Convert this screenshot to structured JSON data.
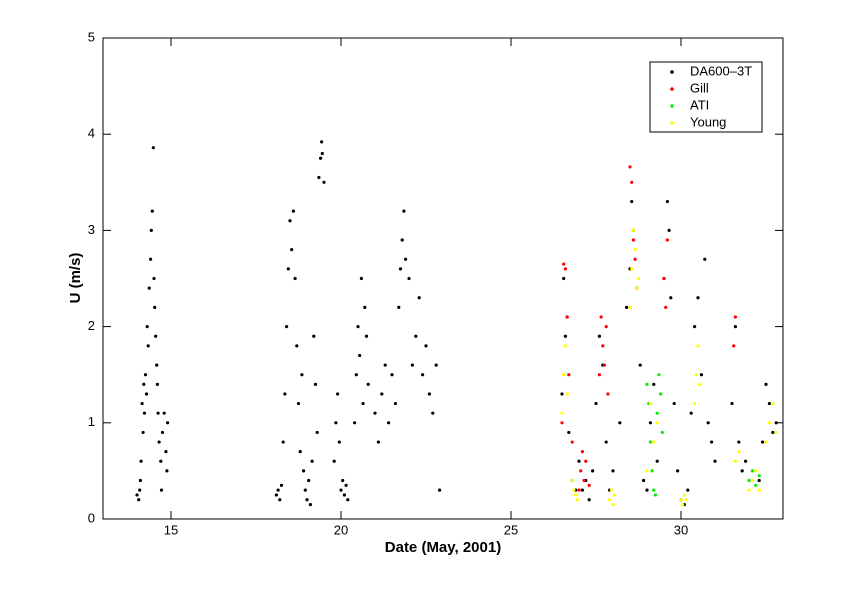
{
  "chart_data": {
    "type": "scatter",
    "xlabel": "Date  (May,  2001)",
    "ylabel": "U  (m/s)",
    "xlim": [
      13,
      33
    ],
    "ylim": [
      0,
      5
    ],
    "xticks": [
      15,
      20,
      25,
      30
    ],
    "yticks": [
      0,
      1,
      2,
      3,
      4,
      5
    ],
    "legend": "top-right",
    "series": [
      {
        "name": "DA600–3T",
        "color": "#000000",
        "x": [
          14.0,
          14.05,
          14.08,
          14.1,
          14.12,
          14.15,
          14.18,
          14.2,
          14.22,
          14.25,
          14.28,
          14.3,
          14.33,
          14.36,
          14.4,
          14.42,
          14.45,
          14.48,
          14.5,
          14.52,
          14.55,
          14.58,
          14.6,
          14.62,
          14.65,
          14.7,
          14.72,
          14.75,
          14.8,
          14.85,
          14.88,
          14.9,
          18.1,
          18.15,
          18.2,
          18.25,
          18.3,
          18.35,
          18.4,
          18.45,
          18.5,
          18.55,
          18.6,
          18.65,
          18.7,
          18.75,
          18.8,
          18.85,
          18.9,
          18.95,
          19.0,
          19.05,
          19.1,
          19.15,
          19.2,
          19.25,
          19.3,
          19.35,
          19.4,
          19.43,
          19.45,
          19.5,
          19.8,
          19.85,
          19.9,
          19.95,
          20.0,
          20.05,
          20.1,
          20.15,
          20.2,
          20.4,
          20.45,
          20.5,
          20.55,
          20.6,
          20.65,
          20.7,
          20.75,
          20.8,
          21.0,
          21.1,
          21.2,
          21.3,
          21.4,
          21.5,
          21.6,
          21.7,
          21.75,
          21.8,
          21.85,
          21.9,
          22.0,
          22.1,
          22.2,
          22.3,
          22.4,
          22.5,
          22.6,
          22.7,
          22.8,
          22.9,
          26.5,
          26.55,
          26.6,
          26.65,
          26.7,
          26.8,
          26.9,
          27.0,
          27.1,
          27.2,
          27.3,
          27.4,
          27.5,
          27.6,
          27.7,
          27.8,
          27.9,
          28.0,
          28.2,
          28.4,
          28.5,
          28.55,
          28.6,
          28.7,
          28.8,
          28.9,
          29.0,
          29.1,
          29.2,
          29.3,
          29.5,
          29.6,
          29.65,
          29.7,
          29.8,
          29.9,
          30.0,
          30.1,
          30.2,
          30.3,
          30.4,
          30.5,
          30.6,
          30.7,
          30.8,
          30.9,
          31.0,
          31.5,
          31.6,
          31.7,
          31.8,
          31.9,
          32.3,
          32.4,
          32.5,
          32.6,
          32.7,
          32.8
        ],
        "y": [
          0.25,
          0.2,
          0.3,
          0.4,
          0.6,
          1.2,
          0.9,
          1.4,
          1.1,
          1.5,
          1.3,
          2.0,
          1.8,
          2.4,
          2.7,
          3.0,
          3.2,
          3.86,
          2.5,
          2.2,
          1.9,
          1.6,
          1.4,
          1.1,
          0.8,
          0.6,
          0.3,
          0.9,
          1.1,
          0.7,
          0.5,
          1.0,
          0.25,
          0.3,
          0.2,
          0.35,
          0.8,
          1.3,
          2.0,
          2.6,
          3.1,
          2.8,
          3.2,
          2.5,
          1.8,
          1.2,
          0.7,
          1.5,
          0.5,
          0.3,
          0.2,
          0.4,
          0.15,
          0.6,
          1.9,
          1.4,
          0.9,
          3.55,
          3.75,
          3.92,
          3.8,
          3.5,
          0.6,
          1.0,
          1.3,
          0.8,
          0.3,
          0.4,
          0.25,
          0.35,
          0.2,
          1.0,
          1.5,
          2.0,
          1.7,
          2.5,
          1.2,
          2.2,
          1.9,
          1.4,
          1.1,
          0.8,
          1.3,
          1.6,
          1.0,
          1.5,
          1.2,
          2.2,
          2.6,
          2.9,
          3.2,
          2.7,
          2.5,
          1.6,
          1.9,
          2.3,
          1.5,
          1.8,
          1.3,
          1.1,
          1.6,
          0.3,
          1.3,
          2.5,
          1.9,
          2.1,
          0.9,
          0.4,
          0.3,
          0.6,
          0.3,
          0.4,
          0.2,
          0.5,
          1.2,
          1.9,
          1.6,
          0.8,
          0.3,
          0.5,
          1.0,
          2.2,
          2.6,
          3.3,
          3.0,
          2.4,
          1.6,
          0.4,
          0.3,
          1.0,
          1.4,
          0.6,
          2.5,
          3.3,
          3.0,
          2.3,
          1.2,
          0.5,
          0.2,
          0.15,
          0.3,
          1.1,
          2.0,
          2.3,
          1.5,
          2.7,
          1.0,
          0.8,
          0.6,
          1.2,
          2.0,
          0.8,
          0.5,
          0.6,
          0.4,
          0.8,
          1.4,
          1.2,
          0.9,
          1.0
        ]
      },
      {
        "name": "Gill",
        "color": "#ff0000",
        "x": [
          26.5,
          26.55,
          26.6,
          26.65,
          26.7,
          26.8,
          27.0,
          27.05,
          27.1,
          27.15,
          27.2,
          27.3,
          27.6,
          27.65,
          27.7,
          27.75,
          27.8,
          27.85,
          28.5,
          28.55,
          28.6,
          28.65,
          28.7,
          29.5,
          29.55,
          29.6,
          31.55,
          31.6
        ],
        "y": [
          1.0,
          2.65,
          2.6,
          2.1,
          1.5,
          0.8,
          0.3,
          0.5,
          0.7,
          0.4,
          0.6,
          0.35,
          1.5,
          2.1,
          1.8,
          1.6,
          2.0,
          1.3,
          3.66,
          3.5,
          2.9,
          2.7,
          2.4,
          2.5,
          2.2,
          2.9,
          1.8,
          2.1
        ]
      },
      {
        "name": "ATI",
        "color": "#00ee00",
        "x": [
          29.0,
          29.05,
          29.1,
          29.15,
          29.2,
          29.25,
          29.3,
          29.35,
          29.4,
          29.45,
          32.0,
          32.1,
          32.2,
          32.3
        ],
        "y": [
          1.4,
          1.2,
          0.8,
          0.5,
          0.3,
          0.25,
          1.1,
          1.5,
          1.3,
          0.9,
          0.4,
          0.5,
          0.35,
          0.45
        ]
      },
      {
        "name": "Young",
        "color": "#ffff00",
        "x": [
          26.5,
          26.55,
          26.6,
          26.65,
          26.8,
          26.85,
          26.9,
          26.95,
          27.9,
          27.95,
          28.0,
          28.05,
          28.5,
          28.55,
          28.6,
          28.65,
          28.7,
          28.75,
          29.0,
          29.1,
          29.2,
          29.3,
          30.0,
          30.05,
          30.1,
          30.15,
          30.4,
          30.45,
          30.5,
          30.55,
          31.6,
          31.7,
          32.0,
          32.1,
          32.2,
          32.3,
          32.5,
          32.6,
          32.7,
          32.8
        ],
        "y": [
          1.1,
          1.5,
          1.8,
          1.3,
          0.4,
          0.3,
          0.25,
          0.2,
          0.2,
          0.3,
          0.15,
          0.25,
          2.2,
          2.6,
          3.0,
          2.8,
          2.4,
          2.5,
          0.5,
          1.2,
          0.8,
          1.0,
          0.2,
          0.15,
          0.25,
          0.2,
          1.2,
          1.5,
          1.8,
          1.4,
          0.6,
          0.7,
          0.3,
          0.4,
          0.5,
          0.3,
          0.8,
          1.0,
          1.2,
          0.9
        ]
      }
    ]
  }
}
